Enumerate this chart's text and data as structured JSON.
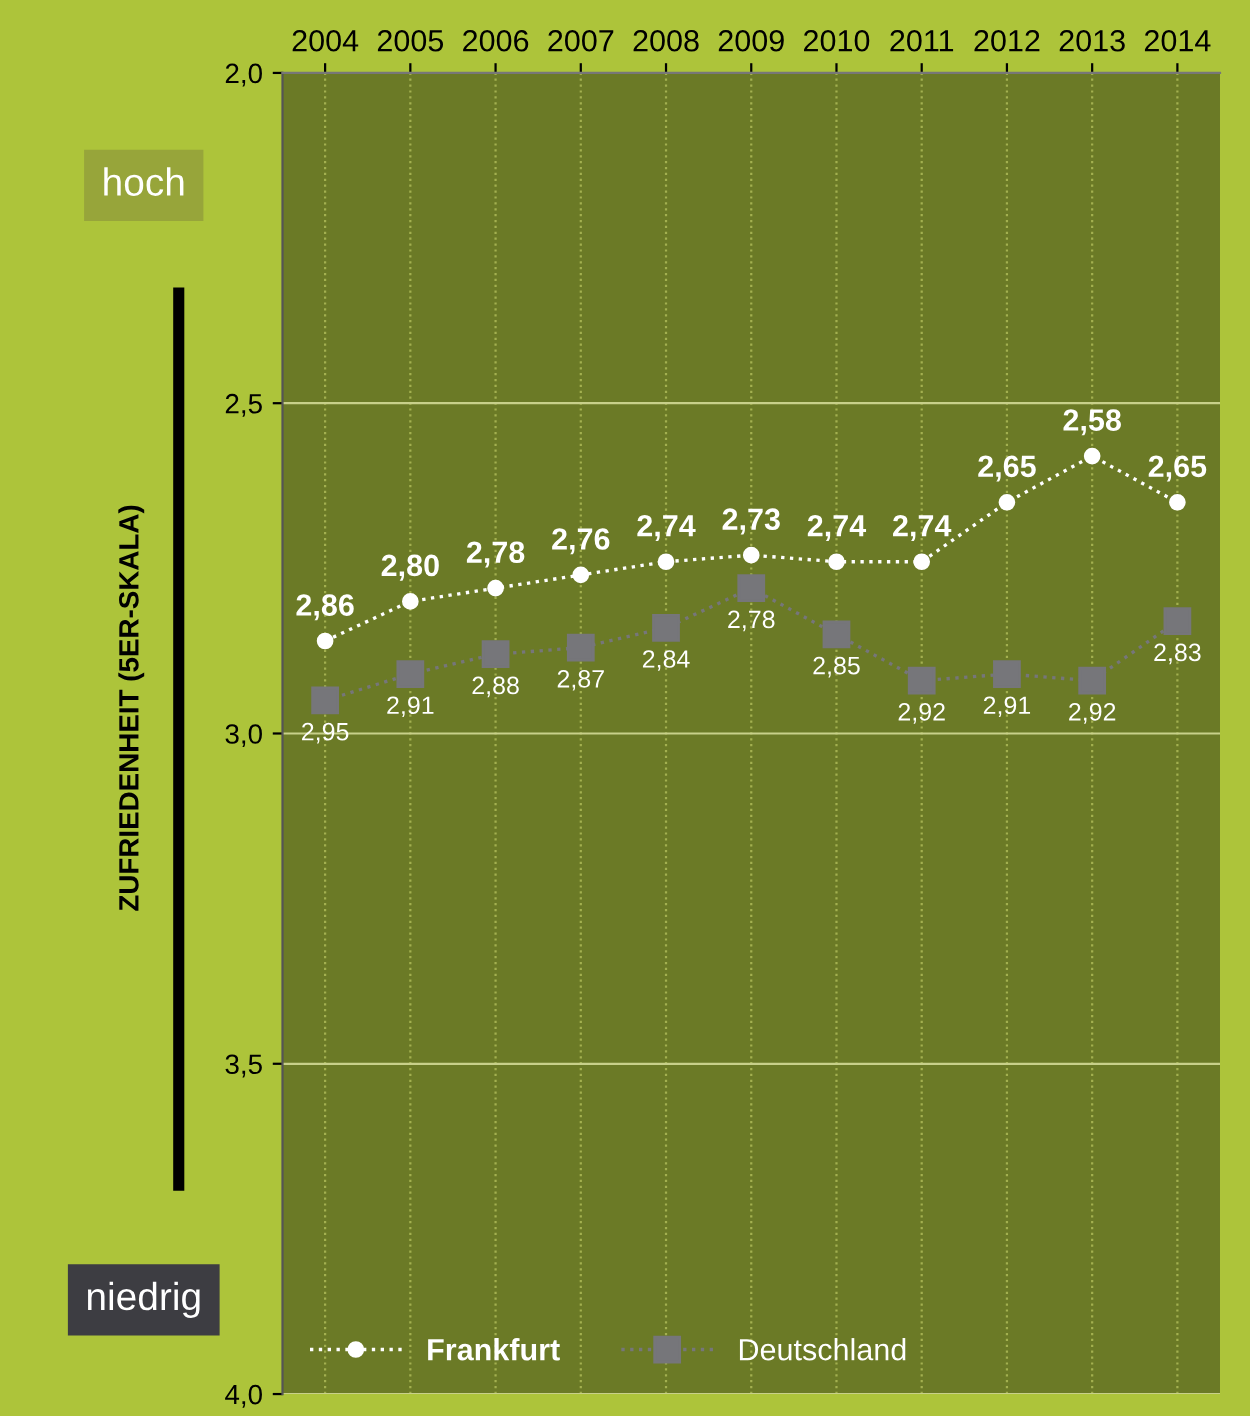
{
  "chart_data": {
    "type": "line",
    "categories": [
      "2004",
      "2005",
      "2006",
      "2007",
      "2008",
      "2009",
      "2010",
      "2011",
      "2012",
      "2013",
      "2014"
    ],
    "series": [
      {
        "name": "Frankfurt",
        "color": "#ffffff",
        "marker": "circle",
        "values": [
          2.86,
          2.8,
          2.78,
          2.76,
          2.74,
          2.73,
          2.74,
          2.74,
          2.65,
          2.58,
          2.65
        ],
        "value_labels": [
          "2,86",
          "2,80",
          "2,78",
          "2,76",
          "2,74",
          "2,73",
          "2,74",
          "2,74",
          "2,65",
          "2,58",
          "2,65"
        ]
      },
      {
        "name": "Deutschland",
        "color": "#76767a",
        "marker": "square",
        "values": [
          2.95,
          2.91,
          2.88,
          2.87,
          2.84,
          2.78,
          2.85,
          2.92,
          2.91,
          2.92,
          2.83
        ],
        "value_labels": [
          "2,95",
          "2,91",
          "2,88",
          "2,87",
          "2,84",
          "2,78",
          "2,85",
          "2,92",
          "2,91",
          "2,92",
          "2,83"
        ]
      }
    ],
    "ylabel": "ZUFRIEDENHEIT (5ER-SKALA)",
    "annotations": [
      "hoch",
      "niedrig"
    ],
    "ylim": [
      4.0,
      2.0
    ],
    "yticks": [
      {
        "value": 2.0,
        "label": "2,0"
      },
      {
        "value": 2.5,
        "label": "2,5"
      },
      {
        "value": 3.0,
        "label": "3,0"
      },
      {
        "value": 3.5,
        "label": "3,5"
      },
      {
        "value": 4.0,
        "label": "4,0"
      }
    ],
    "grid": true,
    "legend": "bottom left",
    "line_style": "dotted"
  }
}
